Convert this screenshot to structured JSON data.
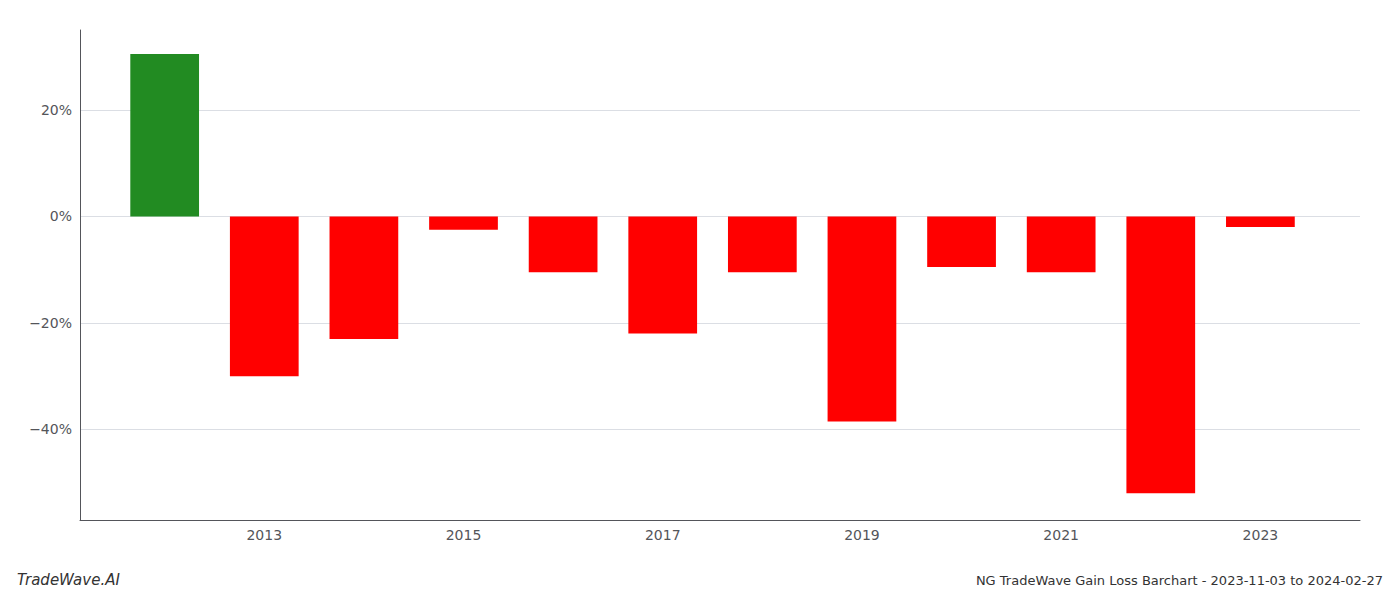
{
  "chart_data": {
    "type": "bar",
    "title": "NG TradeWave Gain Loss Barchart - 2023-11-03 to 2024-02-27",
    "annotations": [
      "TradeWave.AI"
    ],
    "x": [
      2012,
      2013,
      2014,
      2015,
      2016,
      2017,
      2018,
      2019,
      2020,
      2021,
      2022,
      2023
    ],
    "values": [
      30.5,
      -30.0,
      -23.0,
      -2.5,
      -10.5,
      -22.0,
      -10.5,
      -38.5,
      -9.5,
      -10.5,
      -52.0,
      -2.0
    ],
    "colors": [
      "#228B22",
      "#FF0000",
      "#FF0000",
      "#FF0000",
      "#FF0000",
      "#FF0000",
      "#FF0000",
      "#FF0000",
      "#FF0000",
      "#FF0000",
      "#FF0000",
      "#FF0000"
    ],
    "xlim": [
      2011.15,
      2024
    ],
    "xticks": [
      2013,
      2015,
      2017,
      2019,
      2021,
      2023
    ],
    "ylim": [
      -57,
      35
    ],
    "yticks": [
      {
        "value": 20,
        "label": "20%"
      },
      {
        "value": 0,
        "label": "0%"
      },
      {
        "value": -20,
        "label": "−20%"
      },
      {
        "value": -40,
        "label": "−40%"
      }
    ],
    "grid": true
  }
}
